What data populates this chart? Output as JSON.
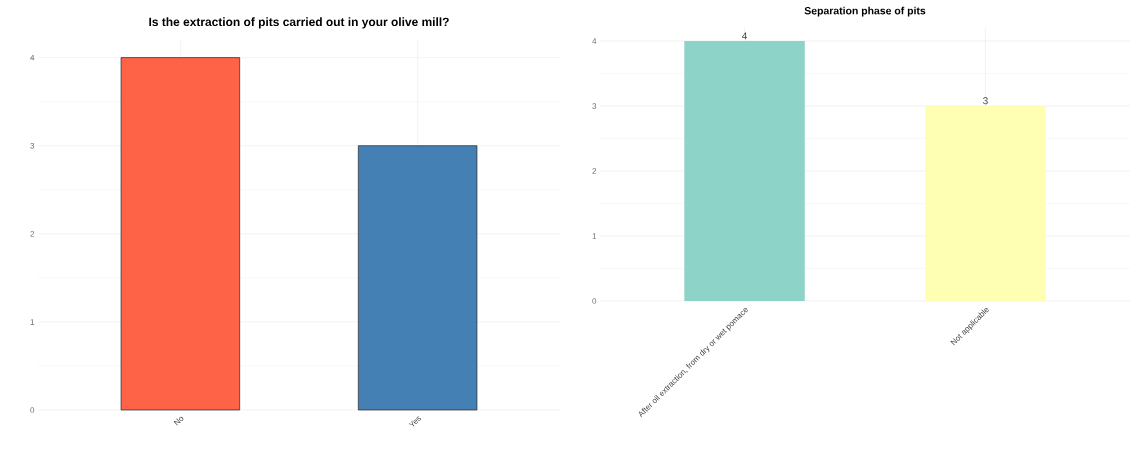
{
  "chart_data": [
    {
      "type": "bar",
      "title": "Is the extraction of pits carried out in your olive mill?",
      "categories": [
        "No",
        "Yes"
      ],
      "values": [
        4,
        3
      ],
      "colors": [
        "#fe6247",
        "#4580b4"
      ],
      "ylim": [
        0,
        4.2
      ],
      "yticks": [
        0,
        1,
        2,
        3,
        4
      ],
      "grid": true
    },
    {
      "type": "bar",
      "title": "Separation phase of pits",
      "categories": [
        "After oil extraction, from dry or wet pomace",
        "Not applicable"
      ],
      "values": [
        4,
        3
      ],
      "colors": [
        "#8dd3c7",
        "#ffffb3"
      ],
      "ylim": [
        0,
        4.2
      ],
      "yticks": [
        0,
        1,
        2,
        3,
        4
      ],
      "grid": true,
      "data_labels": true
    }
  ]
}
